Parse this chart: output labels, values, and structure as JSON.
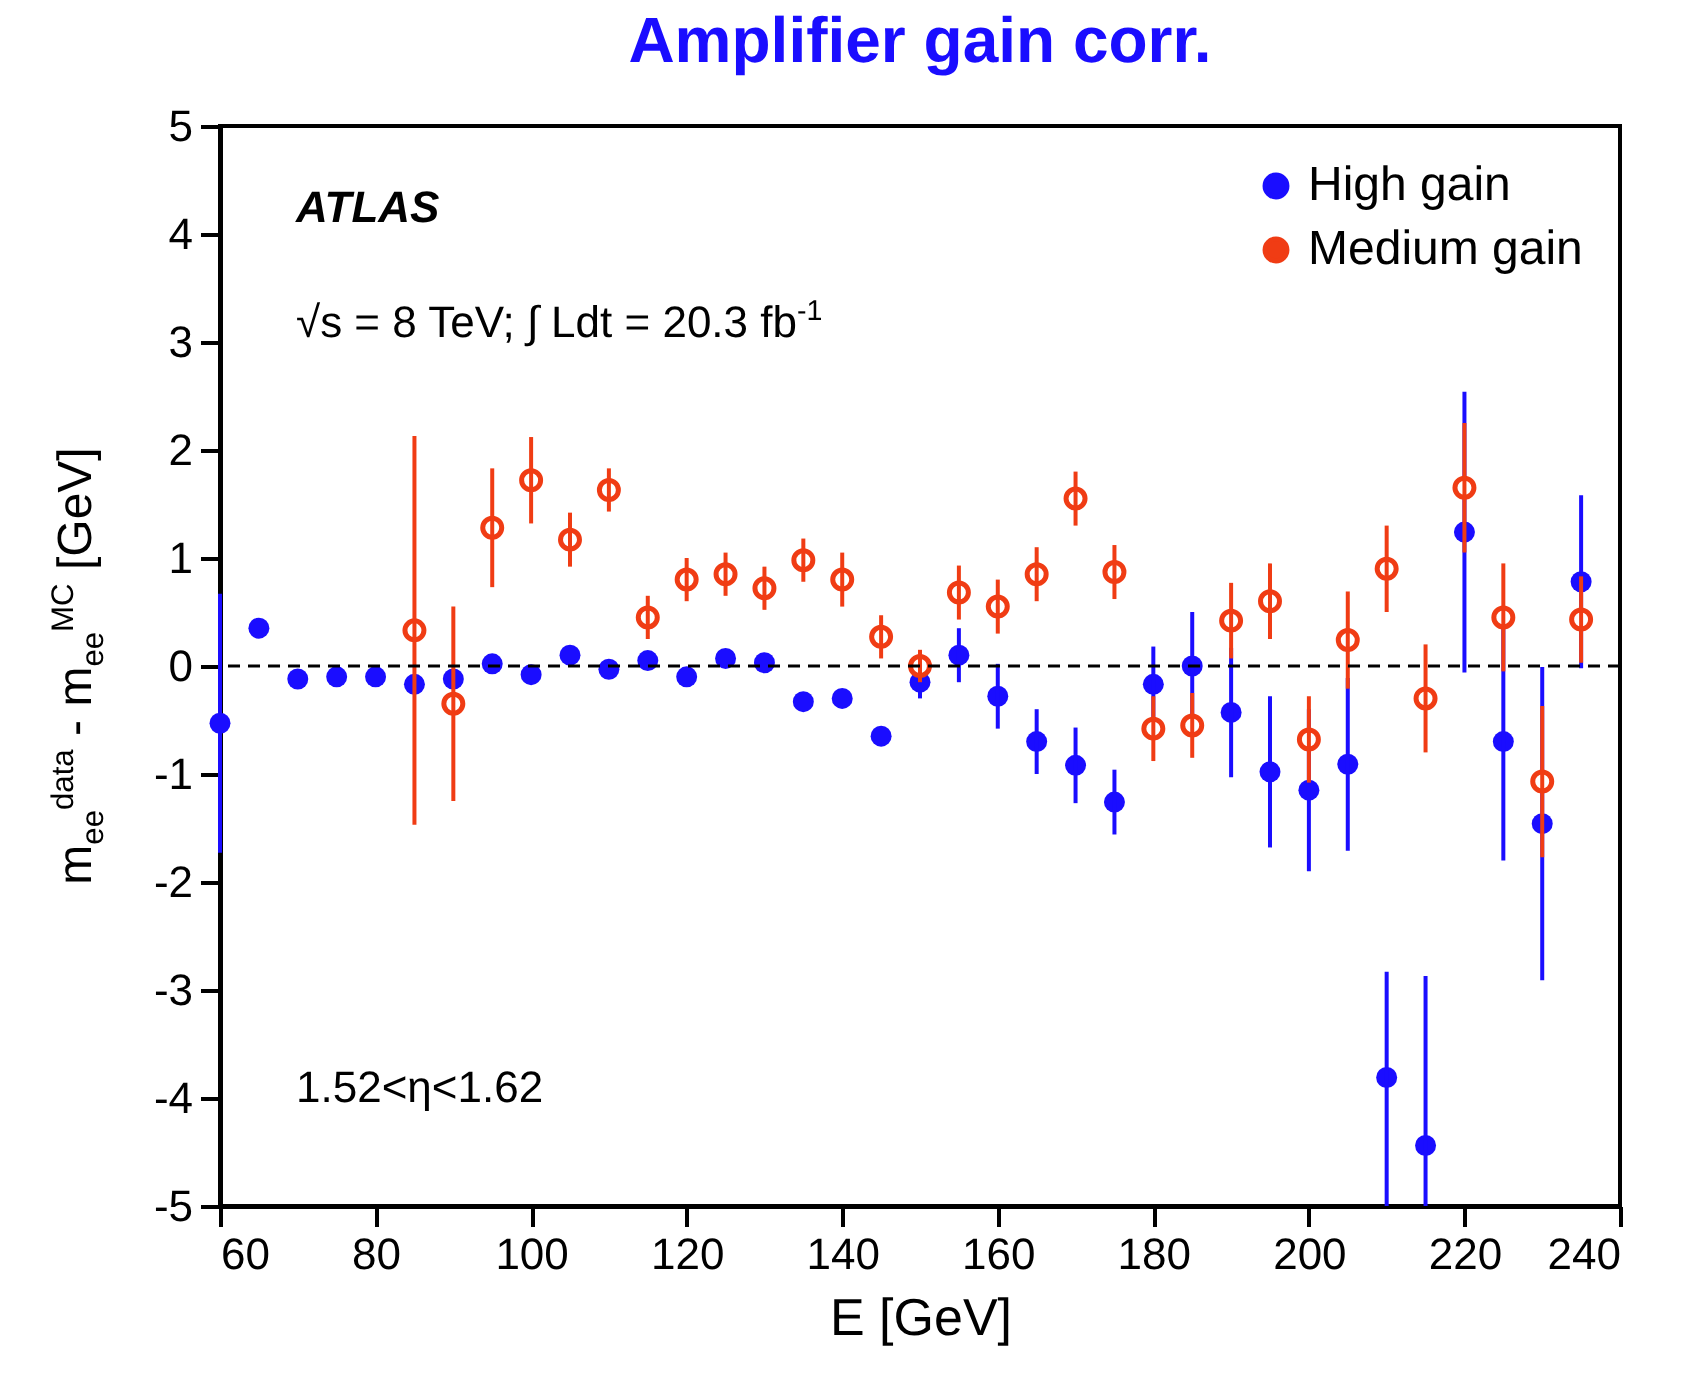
{
  "chart_data": {
    "type": "scatter",
    "title": "Amplifier gain corr.",
    "xlabel": "E [GeV]",
    "ylabel": "m$_{ee}$$^{data}$ - m$_{ee}$$^{MC}$ [GeV]",
    "annotations": [
      "ATLAS",
      "√s = 8 TeV; ∫ Ldt = 20.3 fb$^{-1}$",
      "1.52<η<1.62"
    ],
    "xlim": [
      60,
      240
    ],
    "xticks": [
      60,
      80,
      100,
      120,
      140,
      160,
      180,
      200,
      220,
      240
    ],
    "ylim": [
      -5,
      5
    ],
    "yticks": [
      -5,
      -4,
      -3,
      -2,
      -1,
      0,
      1,
      2,
      3,
      4,
      5
    ],
    "legend": "top right",
    "marker": "circle",
    "grid": false,
    "ref_lines": [
      {
        "axis": "y",
        "value": 0,
        "color": "#000000",
        "line_style": "dashed"
      }
    ],
    "series": [
      {
        "name": "High gain",
        "color": "#1a0dff",
        "x": [
          60,
          65,
          70,
          75,
          80,
          85,
          90,
          95,
          100,
          105,
          110,
          115,
          120,
          125,
          130,
          135,
          140,
          145,
          150,
          155,
          160,
          165,
          170,
          175,
          180,
          185,
          190,
          195,
          200,
          205,
          210,
          215,
          220,
          225,
          230,
          235
        ],
        "values": [
          -0.53,
          0.35,
          -0.12,
          -0.1,
          -0.1,
          -0.17,
          -0.12,
          0.02,
          -0.08,
          0.1,
          -0.03,
          0.05,
          -0.1,
          0.07,
          0.03,
          -0.33,
          -0.3,
          -0.65,
          -0.15,
          0.1,
          -0.28,
          -0.7,
          -0.92,
          -1.26,
          -0.17,
          0.0,
          -0.43,
          -0.98,
          -1.15,
          -0.91,
          -3.81,
          -4.44,
          1.24,
          -0.7,
          -1.46,
          0.78
        ],
        "errors": [
          1.2,
          null,
          null,
          null,
          null,
          null,
          null,
          null,
          null,
          null,
          null,
          null,
          null,
          null,
          null,
          null,
          null,
          null,
          0.15,
          0.25,
          0.3,
          0.3,
          0.35,
          0.3,
          0.35,
          0.5,
          0.6,
          0.7,
          0.75,
          0.8,
          [
            -5,
            -2.83
          ],
          [
            -5,
            -2.87
          ],
          1.3,
          1.1,
          1.45,
          0.8
        ]
      },
      {
        "name": "Medium gain",
        "color": "#f03c14",
        "x": [
          85,
          90,
          95,
          100,
          105,
          110,
          115,
          120,
          125,
          130,
          135,
          140,
          145,
          150,
          155,
          160,
          165,
          170,
          175,
          180,
          185,
          190,
          195,
          200,
          205,
          210,
          215,
          220,
          225,
          230,
          235
        ],
        "values": [
          0.33,
          -0.35,
          1.28,
          1.72,
          1.17,
          1.63,
          0.45,
          0.8,
          0.85,
          0.72,
          0.98,
          0.8,
          0.27,
          0.0,
          0.68,
          0.55,
          0.85,
          1.55,
          0.87,
          -0.58,
          -0.55,
          0.42,
          0.6,
          -0.68,
          0.24,
          0.9,
          -0.3,
          1.65,
          0.45,
          -1.07,
          0.43
        ],
        "errors": [
          1.8,
          0.9,
          0.55,
          0.4,
          0.25,
          0.2,
          0.2,
          0.2,
          0.2,
          0.2,
          0.2,
          0.25,
          0.2,
          0.15,
          0.25,
          0.25,
          0.25,
          0.25,
          0.25,
          0.3,
          0.3,
          0.35,
          0.35,
          0.4,
          0.45,
          0.4,
          0.5,
          0.6,
          0.5,
          0.7,
          0.4
        ]
      }
    ]
  }
}
